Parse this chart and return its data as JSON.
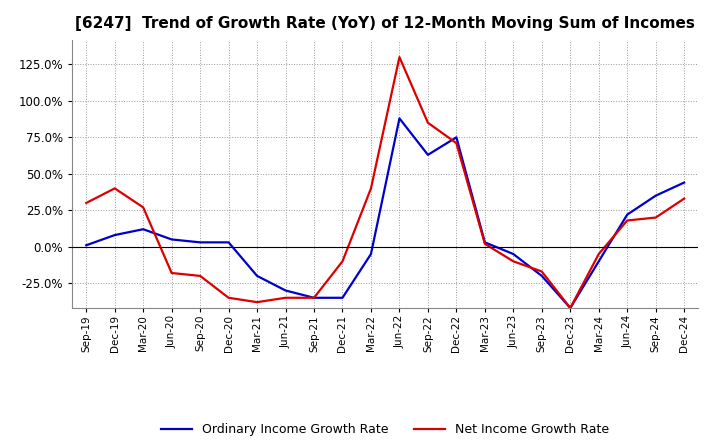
{
  "title": "[6247]  Trend of Growth Rate (YoY) of 12-Month Moving Sum of Incomes",
  "title_fontsize": 11,
  "background_color": "#ffffff",
  "plot_bg_color": "#ffffff",
  "grid_color": "#999999",
  "line_color_ordinary": "#0000cc",
  "line_color_net": "#dd0000",
  "legend_ordinary": "Ordinary Income Growth Rate",
  "legend_net": "Net Income Growth Rate",
  "ylim": [
    -0.42,
    1.42
  ],
  "yticks": [
    -0.25,
    0.0,
    0.25,
    0.5,
    0.75,
    1.0,
    1.25
  ],
  "x_labels": [
    "Sep-19",
    "Dec-19",
    "Mar-20",
    "Jun-20",
    "Sep-20",
    "Dec-20",
    "Mar-21",
    "Jun-21",
    "Sep-21",
    "Dec-21",
    "Mar-22",
    "Jun-22",
    "Sep-22",
    "Dec-22",
    "Mar-23",
    "Jun-23",
    "Sep-23",
    "Dec-23",
    "Mar-24",
    "Jun-24",
    "Sep-24",
    "Dec-24"
  ],
  "ordinary_income_growth": [
    0.01,
    0.08,
    0.12,
    0.05,
    0.03,
    0.03,
    -0.2,
    -0.3,
    -0.35,
    -0.35,
    -0.05,
    0.88,
    0.63,
    0.75,
    0.03,
    -0.05,
    -0.2,
    -0.42,
    -0.1,
    0.22,
    0.35,
    0.44
  ],
  "net_income_growth": [
    0.3,
    0.4,
    0.27,
    -0.18,
    -0.2,
    -0.35,
    -0.38,
    -0.35,
    -0.35,
    -0.1,
    0.4,
    1.3,
    0.85,
    0.71,
    0.02,
    -0.1,
    -0.17,
    -0.42,
    -0.05,
    0.18,
    0.2,
    0.33
  ]
}
